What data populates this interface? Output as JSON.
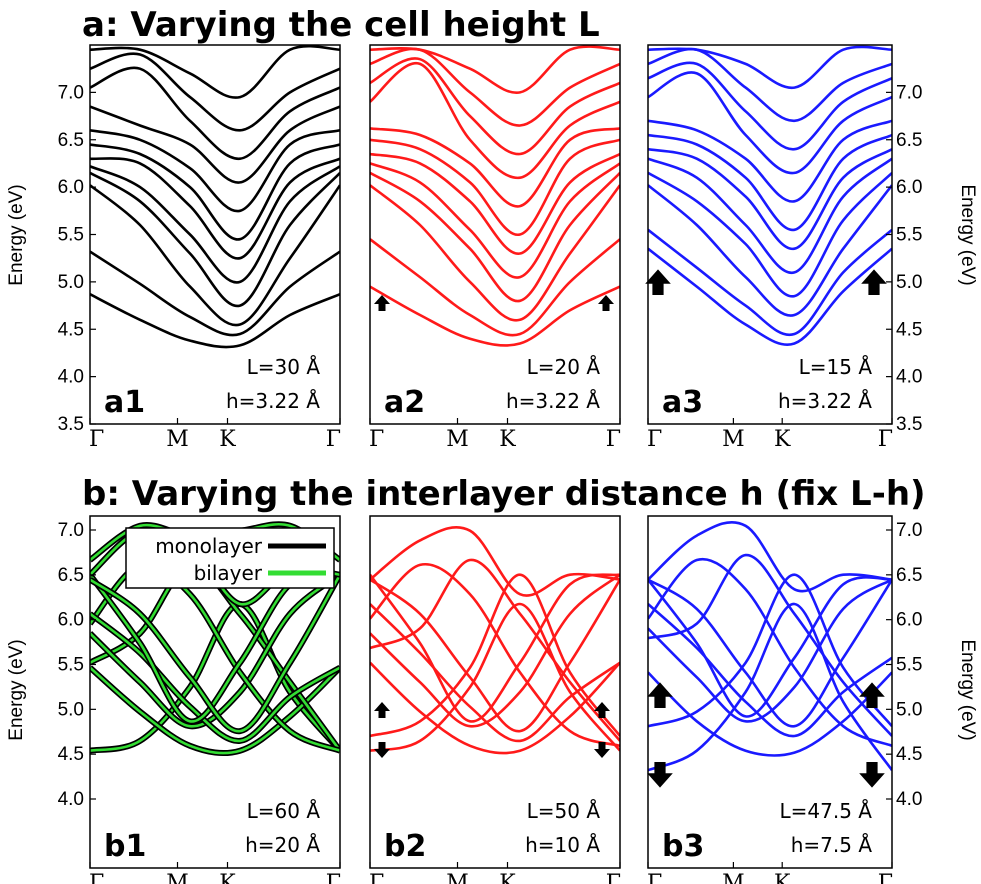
{
  "titles": {
    "a": "a: Varying the cell height L",
    "b": "b: Varying the interlayer distance h (fix L-h)"
  },
  "legend": {
    "monolayer": "monolayer",
    "bilayer": "bilayer"
  },
  "colors": {
    "black": "#000000",
    "red": "#ff1a1a",
    "blue": "#1a1aff",
    "green": "#33dd33"
  },
  "chart_data": [
    {
      "id": "a1",
      "type": "line",
      "panel_label": "a1",
      "ylabel": "Energy (eV)",
      "ylim": [
        3.5,
        7.5
      ],
      "yticks": [
        "3.5",
        "4.0",
        "4.5",
        "5.0",
        "5.5",
        "6.0",
        "6.5",
        "7.0"
      ],
      "xticks": [
        "Γ",
        "M",
        "K",
        "Γ"
      ],
      "annotations": [
        "L=30 Å",
        "h=3.22 Å"
      ],
      "color": "black",
      "arrows": "none",
      "x": [
        0,
        0.2,
        0.4,
        0.6,
        0.8,
        1.0
      ],
      "series": [
        {
          "values": [
            4.87,
            4.6,
            4.38,
            4.33,
            4.65,
            4.87
          ]
        },
        {
          "values": [
            5.32,
            4.98,
            4.63,
            4.45,
            4.95,
            5.32
          ]
        },
        {
          "values": [
            6.02,
            5.6,
            4.95,
            4.55,
            5.25,
            6.02
          ]
        },
        {
          "values": [
            6.15,
            5.85,
            5.3,
            4.75,
            5.6,
            6.15
          ]
        },
        {
          "values": [
            6.22,
            6.0,
            5.5,
            5.0,
            5.85,
            6.22
          ]
        },
        {
          "values": [
            6.3,
            6.25,
            5.8,
            5.25,
            6.05,
            6.3
          ]
        },
        {
          "values": [
            6.45,
            6.35,
            6.0,
            5.45,
            6.25,
            6.45
          ]
        },
        {
          "values": [
            6.6,
            6.5,
            6.2,
            5.75,
            6.45,
            6.6
          ]
        },
        {
          "values": [
            6.85,
            6.65,
            6.45,
            6.05,
            6.6,
            6.85
          ]
        },
        {
          "values": [
            7.05,
            7.25,
            6.7,
            6.3,
            6.8,
            7.05
          ]
        },
        {
          "values": [
            7.25,
            7.4,
            6.95,
            6.6,
            7.0,
            7.25
          ]
        },
        {
          "values": [
            7.45,
            7.45,
            7.2,
            6.95,
            7.45,
            7.45
          ]
        }
      ]
    },
    {
      "id": "a2",
      "type": "line",
      "panel_label": "a2",
      "ylabel": "",
      "ylim": [
        3.5,
        7.5
      ],
      "yticks": [],
      "xticks": [
        "Γ",
        "M",
        "K",
        "Γ"
      ],
      "annotations": [
        "L=20 Å",
        "h=3.22 Å"
      ],
      "color": "red",
      "arrows": "small-up",
      "x": [
        0,
        0.2,
        0.4,
        0.6,
        0.8,
        1.0
      ],
      "series": [
        {
          "values": [
            4.95,
            4.65,
            4.4,
            4.35,
            4.7,
            4.95
          ]
        },
        {
          "values": [
            5.45,
            5.05,
            4.65,
            4.45,
            5.0,
            5.45
          ]
        },
        {
          "values": [
            6.02,
            5.6,
            5.0,
            4.6,
            5.3,
            6.02
          ]
        },
        {
          "values": [
            6.15,
            5.85,
            5.35,
            4.8,
            5.6,
            6.15
          ]
        },
        {
          "values": [
            6.25,
            6.05,
            5.55,
            5.05,
            5.85,
            6.25
          ]
        },
        {
          "values": [
            6.35,
            6.25,
            5.85,
            5.3,
            6.05,
            6.35
          ]
        },
        {
          "values": [
            6.5,
            6.4,
            6.05,
            5.5,
            6.3,
            6.5
          ]
        },
        {
          "values": [
            6.62,
            6.55,
            6.25,
            5.8,
            6.5,
            6.62
          ]
        },
        {
          "values": [
            6.9,
            7.3,
            6.5,
            6.1,
            6.65,
            6.9
          ]
        },
        {
          "values": [
            7.1,
            7.35,
            6.75,
            6.35,
            6.85,
            7.1
          ]
        },
        {
          "values": [
            7.3,
            7.45,
            7.0,
            6.65,
            7.05,
            7.3
          ]
        },
        {
          "values": [
            7.45,
            7.45,
            7.25,
            7.0,
            7.45,
            7.45
          ]
        }
      ]
    },
    {
      "id": "a3",
      "type": "line",
      "panel_label": "a3",
      "ylabel": "Energy (eV)",
      "ylim": [
        3.5,
        7.5
      ],
      "yticks": [
        "3.5",
        "4.0",
        "4.5",
        "5.0",
        "5.5",
        "6.0",
        "6.5",
        "7.0"
      ],
      "xticks": [
        "Γ",
        "M",
        "K",
        "Γ"
      ],
      "annotations": [
        "L=15 Å",
        "h=3.22 Å"
      ],
      "color": "blue",
      "arrows": "large-up",
      "x": [
        0,
        0.2,
        0.4,
        0.6,
        0.8,
        1.0
      ],
      "series": [
        {
          "values": [
            5.35,
            4.95,
            4.55,
            4.35,
            4.9,
            5.35
          ]
        },
        {
          "values": [
            5.55,
            5.15,
            4.75,
            4.45,
            5.1,
            5.55
          ]
        },
        {
          "values": [
            6.02,
            5.6,
            5.05,
            4.65,
            5.35,
            6.02
          ]
        },
        {
          "values": [
            6.15,
            5.85,
            5.4,
            4.85,
            5.65,
            6.15
          ]
        },
        {
          "values": [
            6.3,
            6.1,
            5.6,
            5.1,
            5.9,
            6.3
          ]
        },
        {
          "values": [
            6.4,
            6.3,
            5.9,
            5.35,
            6.1,
            6.4
          ]
        },
        {
          "values": [
            6.55,
            6.45,
            6.1,
            5.55,
            6.3,
            6.55
          ]
        },
        {
          "values": [
            6.7,
            6.6,
            6.3,
            5.85,
            6.5,
            6.7
          ]
        },
        {
          "values": [
            6.95,
            7.2,
            6.55,
            6.15,
            6.7,
            6.95
          ]
        },
        {
          "values": [
            7.15,
            7.3,
            6.8,
            6.4,
            6.9,
            7.15
          ]
        },
        {
          "values": [
            7.3,
            7.45,
            7.05,
            6.7,
            7.1,
            7.3
          ]
        },
        {
          "values": [
            7.45,
            7.45,
            7.3,
            7.05,
            7.45,
            7.45
          ]
        }
      ]
    },
    {
      "id": "b1",
      "type": "line",
      "panel_label": "b1",
      "ylabel": "Energy (eV)",
      "ylim": [
        3.5,
        7.1
      ],
      "yticks": [
        "4.0",
        "4.5",
        "5.0",
        "5.5",
        "6.0",
        "6.5",
        "7.0"
      ],
      "xticks": [
        "Γ",
        "M",
        "K",
        "Γ"
      ],
      "annotations": [
        "L=60 Å",
        "h=20 Å"
      ],
      "color": "green-outlined",
      "arrows": "none",
      "x": [
        0,
        0.2,
        0.4,
        0.6,
        0.8,
        1.0
      ],
      "series": [
        {
          "name": "bilayer",
          "values": [
            4.7,
            4.8,
            5.35,
            6.2,
            5.3,
            4.7
          ]
        },
        {
          "values": [
            5.55,
            5.1,
            4.75,
            4.7,
            5.05,
            5.55
          ]
        },
        {
          "values": [
            5.6,
            5.9,
            6.6,
            6.1,
            5.4,
            4.7
          ]
        },
        {
          "values": [
            5.9,
            5.4,
            4.95,
            5.3,
            6.1,
            6.5
          ]
        },
        {
          "values": [
            6.0,
            6.6,
            6.3,
            5.5,
            4.9,
            4.7
          ]
        },
        {
          "values": [
            6.1,
            5.7,
            5.15,
            4.8,
            5.25,
            5.55
          ]
        },
        {
          "values": [
            6.5,
            5.8,
            5.0,
            5.6,
            6.4,
            6.5
          ]
        },
        {
          "values": [
            6.45,
            6.1,
            5.45,
            4.9,
            5.6,
            6.5
          ]
        },
        {
          "values": [
            6.5,
            6.95,
            6.8,
            6.2,
            6.55,
            6.5
          ]
        },
        {
          "values": [
            6.65,
            7.0,
            6.9,
            6.95,
            7.0,
            6.65
          ]
        }
      ]
    },
    {
      "id": "b2",
      "type": "line",
      "panel_label": "b2",
      "ylabel": "",
      "ylim": [
        3.5,
        7.1
      ],
      "yticks": [],
      "xticks": [
        "Γ",
        "M",
        "K",
        "Γ"
      ],
      "annotations": [
        "L=50 Å",
        "h=10 Å"
      ],
      "color": "red",
      "arrows": "small-split",
      "x": [
        0,
        0.2,
        0.4,
        0.6,
        0.8,
        1.0
      ],
      "series": [
        {
          "values": [
            4.7,
            4.8,
            5.35,
            6.2,
            5.3,
            4.7
          ]
        },
        {
          "values": [
            4.85,
            5.0,
            5.55,
            6.5,
            5.5,
            4.85
          ]
        },
        {
          "values": [
            5.6,
            5.1,
            4.75,
            4.7,
            5.05,
            5.6
          ]
        },
        {
          "values": [
            5.75,
            5.95,
            6.65,
            6.1,
            5.4,
            4.8
          ]
        },
        {
          "values": [
            5.9,
            5.4,
            4.95,
            5.3,
            6.1,
            6.5
          ]
        },
        {
          "values": [
            6.05,
            6.6,
            6.3,
            5.5,
            4.9,
            4.75
          ]
        },
        {
          "values": [
            6.2,
            5.7,
            5.15,
            4.8,
            5.25,
            5.6
          ]
        },
        {
          "values": [
            6.5,
            5.8,
            5.0,
            5.6,
            6.4,
            6.5
          ]
        },
        {
          "values": [
            6.45,
            6.1,
            5.45,
            4.9,
            5.6,
            6.45
          ]
        },
        {
          "values": [
            6.45,
            6.85,
            6.95,
            6.3,
            6.5,
            6.45
          ]
        }
      ]
    },
    {
      "id": "b3",
      "type": "line",
      "panel_label": "b3",
      "ylabel": "Energy (eV)",
      "ylim": [
        3.5,
        7.1
      ],
      "yticks": [
        "4.0",
        "4.5",
        "5.0",
        "5.5",
        "6.0",
        "6.5",
        "7.0"
      ],
      "xticks": [
        "Γ",
        "M",
        "K",
        "Γ"
      ],
      "annotations": [
        "L=47.5 Å",
        "h=7.5 Å"
      ],
      "color": "blue",
      "arrows": "large-split",
      "x": [
        0,
        0.2,
        0.4,
        0.6,
        0.8,
        1.0
      ],
      "series": [
        {
          "values": [
            4.5,
            4.7,
            5.3,
            6.2,
            5.2,
            4.5
          ]
        },
        {
          "values": [
            4.95,
            5.1,
            5.6,
            6.5,
            5.55,
            4.95
          ]
        },
        {
          "values": [
            5.5,
            5.0,
            4.7,
            4.68,
            5.0,
            5.5
          ]
        },
        {
          "values": [
            5.85,
            6.0,
            6.7,
            6.1,
            5.4,
            4.85
          ]
        },
        {
          "values": [
            5.95,
            5.45,
            5.0,
            5.35,
            6.15,
            6.45
          ]
        },
        {
          "values": [
            6.05,
            6.65,
            6.35,
            5.55,
            4.95,
            4.75
          ]
        },
        {
          "values": [
            6.2,
            5.75,
            5.2,
            4.85,
            5.3,
            5.65
          ]
        },
        {
          "values": [
            6.45,
            5.8,
            5.05,
            5.65,
            6.4,
            6.45
          ]
        },
        {
          "values": [
            6.45,
            6.15,
            5.5,
            4.95,
            5.65,
            6.45
          ]
        },
        {
          "values": [
            6.45,
            6.9,
            7.0,
            6.35,
            6.5,
            6.45
          ]
        }
      ]
    }
  ]
}
